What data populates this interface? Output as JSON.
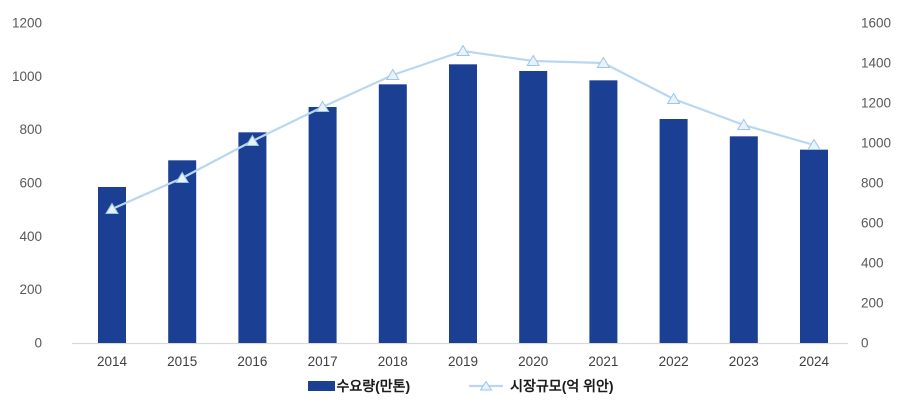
{
  "chart_data": {
    "type": "combo",
    "title": "",
    "categories": [
      "2014",
      "2015",
      "2016",
      "2017",
      "2018",
      "2019",
      "2020",
      "2021",
      "2022",
      "2023",
      "2024"
    ],
    "series": [
      {
        "name": "수요량(만톤)",
        "type": "bar",
        "axis": "left",
        "color": "#1B3F92",
        "values": [
          585,
          685,
          790,
          885,
          970,
          1045,
          1020,
          985,
          840,
          775,
          725
        ]
      },
      {
        "name": "시장규모(억 위안)",
        "type": "line",
        "axis": "right",
        "color": "#B9D7F0",
        "marker": "triangle",
        "marker_fill": "#E8F2FB",
        "marker_stroke": "#9CC6E8",
        "values": [
          670,
          825,
          1010,
          1180,
          1340,
          1460,
          1410,
          1400,
          1220,
          1090,
          990
        ]
      }
    ],
    "left_axis": {
      "min": 0,
      "max": 1200,
      "step": 200,
      "tick_labels": [
        "0",
        "200",
        "400",
        "600",
        "800",
        "1000",
        "1200"
      ]
    },
    "right_axis": {
      "min": 0,
      "max": 1600,
      "step": 200,
      "tick_labels": [
        "0",
        "200",
        "400",
        "600",
        "800",
        "1000",
        "1200",
        "1400",
        "1600"
      ]
    },
    "grid": false,
    "legend_position": "bottom",
    "colors": {
      "axis_text": "#595959",
      "x_label_text": "#3F3F3F",
      "axis_line": "#D9D9D9",
      "background": "#FFFFFF"
    }
  }
}
